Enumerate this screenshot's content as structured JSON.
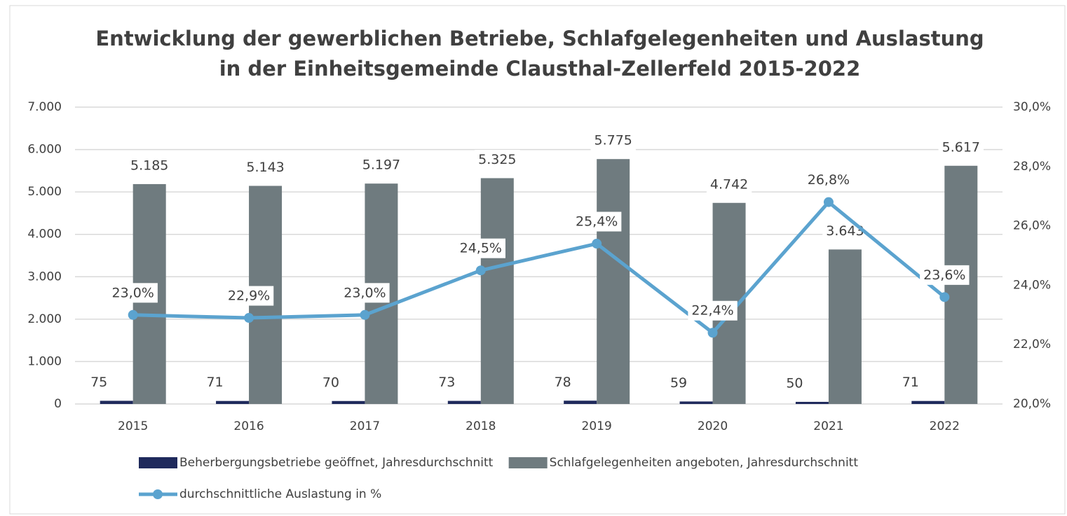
{
  "chart_data": {
    "type": "bar",
    "title": "Entwicklung der gewerblichen Betriebe, Schlafgelegenheiten und Auslastung",
    "subtitle": "in der Einheitsgemeinde Clausthal-Zellerfeld 2015-2022",
    "categories": [
      "2015",
      "2016",
      "2017",
      "2018",
      "2019",
      "2020",
      "2021",
      "2022"
    ],
    "series": [
      {
        "name": "Beherbergungsbetriebe geöffnet, Jahresdurchschnitt",
        "type": "bar",
        "color": "#1f2a5c",
        "values": [
          75,
          71,
          70,
          73,
          78,
          59,
          50,
          71
        ]
      },
      {
        "name": "Schlafgelegenheiten angeboten, Jahresdurchschnitt",
        "type": "bar",
        "color": "#6f7b7f",
        "values": [
          5185,
          5143,
          5197,
          5325,
          5775,
          4742,
          3643,
          5617
        ],
        "value_labels": [
          "5.185",
          "5.143",
          "5.197",
          "5.325",
          "5.775",
          "4.742",
          "3.643",
          "5.617"
        ]
      },
      {
        "name": "durchschnittliche Auslastung in %",
        "type": "line",
        "axis": "y2",
        "color": "#5ba3cf",
        "values": [
          23.0,
          22.9,
          23.0,
          24.5,
          25.4,
          22.4,
          26.8,
          23.6
        ],
        "value_labels": [
          "23,0%",
          "22,9%",
          "23,0%",
          "24,5%",
          "25,4%",
          "22,4%",
          "26,8%",
          "23,6%"
        ]
      }
    ],
    "ylim": [
      0,
      7000
    ],
    "yticks": [
      {
        "value": 0,
        "label": "0"
      },
      {
        "value": 1000,
        "label": "1.000"
      },
      {
        "value": 2000,
        "label": "2.000"
      },
      {
        "value": 3000,
        "label": "3.000"
      },
      {
        "value": 4000,
        "label": "4.000"
      },
      {
        "value": 5000,
        "label": "5.000"
      },
      {
        "value": 6000,
        "label": "6.000"
      },
      {
        "value": 7000,
        "label": "7.000"
      }
    ],
    "y2lim": [
      20,
      30
    ],
    "y2ticks": [
      {
        "value": 20,
        "label": "20,0%"
      },
      {
        "value": 22,
        "label": "22,0%"
      },
      {
        "value": 24,
        "label": "24,0%"
      },
      {
        "value": 26,
        "label": "26,0%"
      },
      {
        "value": 28,
        "label": "28,0%"
      },
      {
        "value": 30,
        "label": "30,0%"
      }
    ],
    "grid": true,
    "legend": "bottom"
  }
}
